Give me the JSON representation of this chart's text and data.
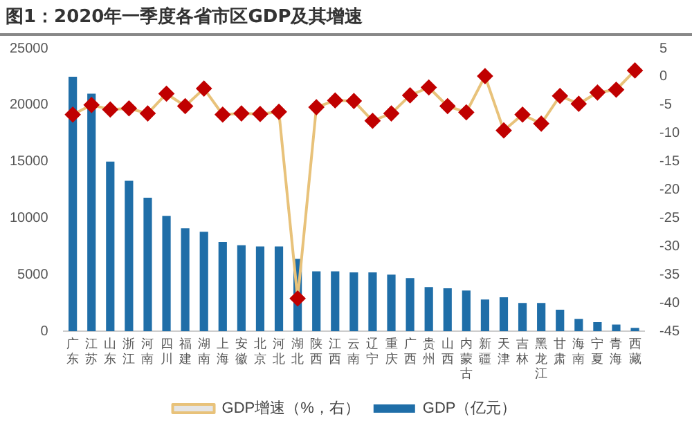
{
  "chart_data": {
    "type": "bar",
    "title": "图1：2020年一季度各省市区GDP及其增速",
    "categories": [
      "广东",
      "江苏",
      "山东",
      "浙江",
      "河南",
      "四川",
      "福建",
      "湖南",
      "上海",
      "安徽",
      "北京",
      "河北",
      "湖北",
      "陕西",
      "江西",
      "云南",
      "辽宁",
      "重庆",
      "广西",
      "贵州",
      "山西",
      "内蒙古",
      "新疆",
      "天津",
      "吉林",
      "黑龙江",
      "甘肃",
      "海南",
      "宁夏",
      "青海",
      "西藏"
    ],
    "series": [
      {
        "name": "GDP（亿元）",
        "color": "#1f6ea8",
        "values": [
          22500,
          21000,
          15000,
          13300,
          11800,
          10200,
          9100,
          8800,
          7900,
          7600,
          7500,
          7500,
          6400,
          5300,
          5300,
          5200,
          5200,
          5000,
          4700,
          3900,
          3800,
          3600,
          2800,
          3000,
          2500,
          2500,
          1900,
          1100,
          800,
          600,
          300
        ]
      },
      {
        "name": "GDP增速（%，右）",
        "type": "line",
        "axis": "y2",
        "color": "#e8c27a",
        "values": [
          -6.7,
          -5.0,
          -5.8,
          -5.6,
          -6.5,
          -3.0,
          -5.2,
          -2.1,
          -6.7,
          -6.5,
          -6.6,
          -6.2,
          -39.2,
          -5.4,
          -4.2,
          -4.3,
          -7.8,
          -6.5,
          -3.3,
          -1.9,
          -5.2,
          -6.3,
          0.1,
          -9.5,
          -6.7,
          -8.3,
          -3.4,
          -4.8,
          -2.8,
          -2.3,
          1.1
        ]
      }
    ],
    "ylim": [
      0,
      25000
    ],
    "yticks": [
      0,
      5000,
      10000,
      15000,
      20000,
      25000
    ],
    "y2lim": [
      -45,
      5
    ],
    "y2ticks": [
      -45,
      -40,
      -35,
      -30,
      -25,
      -20,
      -15,
      -10,
      -5,
      0,
      5
    ],
    "marker": "diamond",
    "grid": false,
    "legend": "bottom"
  }
}
